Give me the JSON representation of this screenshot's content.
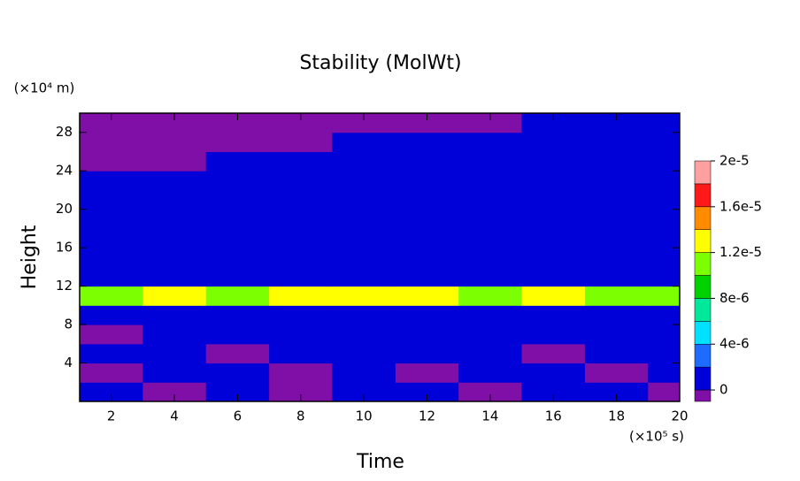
{
  "chart_data": {
    "type": "contour",
    "title": "Stability (MolWt)",
    "x_label": "Time",
    "y_label": "Height",
    "x_unit": "(×10⁵ s)",
    "y_unit": "(×10⁴ m)",
    "xlim": [
      1,
      20
    ],
    "ylim": [
      0,
      30
    ],
    "xticks": [
      2,
      4,
      6,
      8,
      10,
      12,
      14,
      16,
      18,
      20
    ],
    "yticks": [
      4,
      8,
      12,
      16,
      20,
      24,
      28
    ],
    "x": [
      2,
      4,
      6,
      8,
      10,
      12,
      14,
      16,
      18,
      20
    ],
    "y": [
      1,
      3,
      5,
      7,
      9,
      11,
      13,
      15,
      17,
      19,
      21,
      23,
      25,
      27,
      29
    ],
    "z": [
      [
        1e-06,
        -5e-07,
        1e-06,
        -5e-07,
        1e-06,
        1e-06,
        -5e-07,
        1e-06,
        1e-06,
        -5e-07
      ],
      [
        -5e-07,
        1e-06,
        1e-06,
        -5e-07,
        1e-06,
        -5e-07,
        1e-06,
        1e-06,
        -5e-07,
        1e-06
      ],
      [
        1e-06,
        1e-06,
        -5e-07,
        1e-06,
        1e-06,
        1e-06,
        1e-06,
        -5e-07,
        1e-06,
        1e-06
      ],
      [
        -5e-07,
        1e-06,
        1e-06,
        1e-06,
        1e-06,
        1e-06,
        1e-06,
        1e-06,
        1e-06,
        1e-06
      ],
      [
        1e-06,
        1e-06,
        1e-06,
        1e-06,
        1e-06,
        1e-06,
        1e-06,
        1e-06,
        1e-06,
        1e-06
      ],
      [
        1.1e-05,
        1.2e-05,
        1.1e-05,
        1.2e-05,
        1.3e-05,
        1.2e-05,
        1.1e-05,
        1.2e-05,
        1.1e-05,
        1.1e-05
      ],
      [
        1e-06,
        1e-06,
        1e-06,
        1e-06,
        1e-06,
        1e-06,
        1e-06,
        1e-06,
        1e-06,
        1e-06
      ],
      [
        1e-06,
        1e-06,
        1e-06,
        1e-06,
        1e-06,
        1e-06,
        1e-06,
        1e-06,
        1e-06,
        1e-06
      ],
      [
        1e-06,
        1e-06,
        1e-06,
        1e-06,
        1e-06,
        1e-06,
        1e-06,
        1e-06,
        1e-06,
        1e-06
      ],
      [
        1e-06,
        1e-06,
        1e-06,
        1e-06,
        1e-06,
        1e-06,
        1e-06,
        1e-06,
        1e-06,
        1e-06
      ],
      [
        1e-06,
        1e-06,
        1e-06,
        1e-06,
        1e-06,
        1e-06,
        1e-06,
        1e-06,
        1e-06,
        1e-06
      ],
      [
        1e-06,
        1e-06,
        1e-06,
        1e-06,
        1e-06,
        1e-06,
        1e-06,
        1e-06,
        1e-06,
        1e-06
      ],
      [
        -5e-07,
        -5e-07,
        1e-06,
        1e-06,
        1e-06,
        1e-06,
        1e-06,
        1e-06,
        1e-06,
        1e-06
      ],
      [
        -5e-07,
        -5e-07,
        -5e-07,
        -5e-07,
        1e-06,
        1e-06,
        1e-06,
        1e-06,
        1e-06,
        1e-06
      ],
      [
        -5e-07,
        -5e-07,
        -5e-07,
        -5e-07,
        -5e-07,
        -5e-07,
        -5e-07,
        1e-06,
        1e-06,
        1e-06
      ]
    ],
    "levels": [
      0,
      2e-06,
      4e-06,
      6e-06,
      8e-06,
      1e-05,
      1.2e-05,
      1.4e-05,
      1.6e-05,
      1.8e-05,
      2e-05
    ],
    "colors": [
      "#7f0fa6",
      "#0000d8",
      "#1e6cff",
      "#00e0ff",
      "#00e89a",
      "#00d200",
      "#7cff00",
      "#ffff00",
      "#ff8c00",
      "#ff1a1a",
      "#ffa0a0"
    ],
    "colorbar_lim": [
      -1e-06,
      2e-05
    ],
    "colorbar_ticks": [
      0,
      {
        "value": 4e-06,
        "label": "4e-6"
      },
      {
        "value": 8e-06,
        "label": "8e-6"
      },
      {
        "value": 1.2e-05,
        "label": "1.2e-5"
      },
      {
        "value": 1.6e-05,
        "label": "1.6e-5"
      },
      {
        "value": 2e-05,
        "label": "2e-5"
      }
    ]
  }
}
